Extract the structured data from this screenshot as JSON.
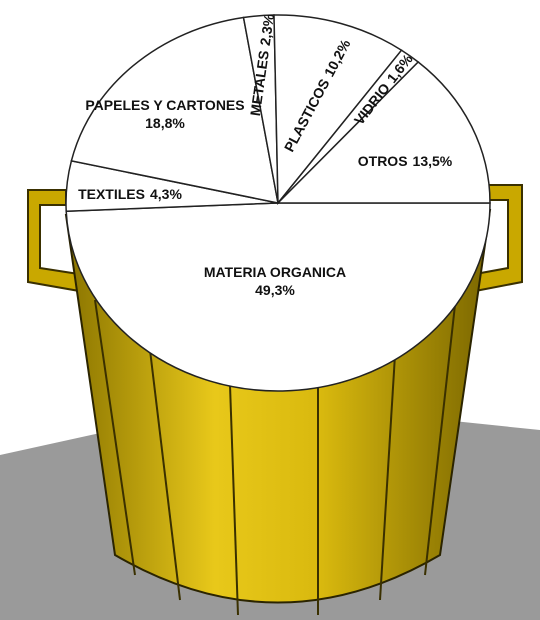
{
  "chart_data": {
    "type": "pie",
    "categories": [
      "MATERIA ORGANICA",
      "TEXTILES",
      "PAPELES Y CARTONES",
      "METALES",
      "PLASTICOS",
      "VIDRIO",
      "OTROS"
    ],
    "values": [
      49.3,
      4.3,
      18.8,
      2.3,
      10.2,
      1.6,
      13.5
    ],
    "value_labels": [
      "49,3%",
      "4,3%",
      "18,8%",
      "2,3%",
      "10,2%",
      "1,6%",
      "13,5%"
    ],
    "color": "#ffffff"
  }
}
